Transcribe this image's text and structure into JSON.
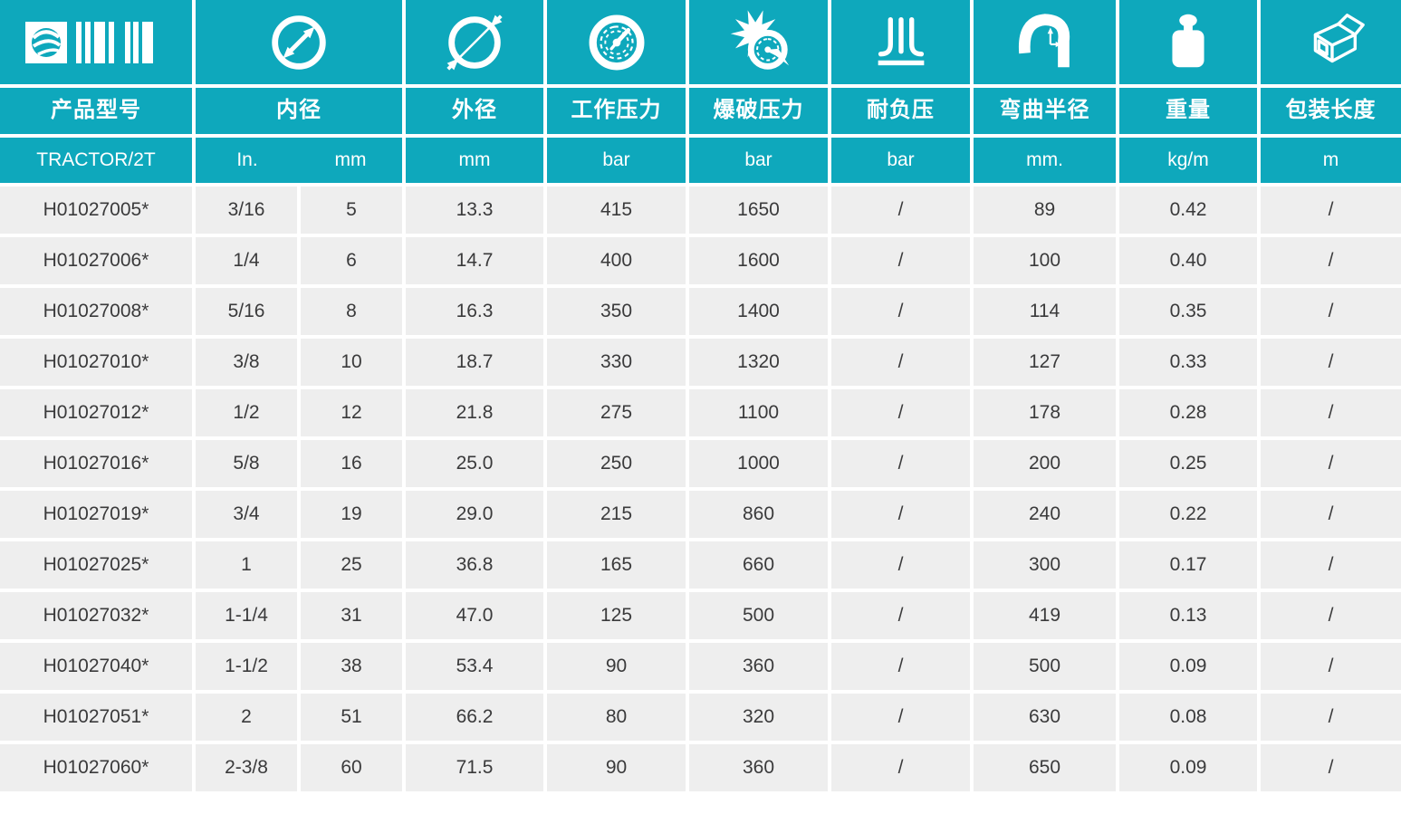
{
  "colors": {
    "accent_teal": "#0EA8BC",
    "row_background": "#EEEEEE",
    "data_text": "#3A3A3B",
    "header_text": "#FFFFFF"
  },
  "table": {
    "series_code": "TRACTOR/2T",
    "columns": [
      {
        "label": "产品型号",
        "unit": "TRACTOR/2T",
        "icon": "globe-barcode-logo-icon"
      },
      {
        "label": "内径",
        "unit_in": "In.",
        "unit_mm": "mm",
        "icon": "inner-diameter-icon"
      },
      {
        "label": "外径",
        "unit": "mm",
        "icon": "outer-diameter-icon"
      },
      {
        "label": "工作压力",
        "unit": "bar",
        "icon": "working-pressure-gauge-icon"
      },
      {
        "label": "爆破压力",
        "unit": "bar",
        "icon": "burst-pressure-icon"
      },
      {
        "label": "耐负压",
        "unit": "bar",
        "icon": "vacuum-resistance-icon"
      },
      {
        "label": "弯曲半径",
        "unit": "mm.",
        "icon": "bend-radius-icon"
      },
      {
        "label": "重量",
        "unit": "kg/m",
        "icon": "weight-icon"
      },
      {
        "label": "包装长度",
        "unit": "m",
        "icon": "packing-length-box-icon"
      }
    ],
    "rows": [
      [
        "H01027005*",
        "3/16",
        "5",
        "13.3",
        "415",
        "1650",
        "/",
        "89",
        "0.42",
        "/"
      ],
      [
        "H01027006*",
        "1/4",
        "6",
        "14.7",
        "400",
        "1600",
        "/",
        "100",
        "0.40",
        "/"
      ],
      [
        "H01027008*",
        "5/16",
        "8",
        "16.3",
        "350",
        "1400",
        "/",
        "114",
        "0.35",
        "/"
      ],
      [
        "H01027010*",
        "3/8",
        "10",
        "18.7",
        "330",
        "1320",
        "/",
        "127",
        "0.33",
        "/"
      ],
      [
        "H01027012*",
        "1/2",
        "12",
        "21.8",
        "275",
        "1100",
        "/",
        "178",
        "0.28",
        "/"
      ],
      [
        "H01027016*",
        "5/8",
        "16",
        "25.0",
        "250",
        "1000",
        "/",
        "200",
        "0.25",
        "/"
      ],
      [
        "H01027019*",
        "3/4",
        "19",
        "29.0",
        "215",
        "860",
        "/",
        "240",
        "0.22",
        "/"
      ],
      [
        "H01027025*",
        "1",
        "25",
        "36.8",
        "165",
        "660",
        "/",
        "300",
        "0.17",
        "/"
      ],
      [
        "H01027032*",
        "1-1/4",
        "31",
        "47.0",
        "125",
        "500",
        "/",
        "419",
        "0.13",
        "/"
      ],
      [
        "H01027040*",
        "1-1/2",
        "38",
        "53.4",
        "90",
        "360",
        "/",
        "500",
        "0.09",
        "/"
      ],
      [
        "H01027051*",
        "2",
        "51",
        "66.2",
        "80",
        "320",
        "/",
        "630",
        "0.08",
        "/"
      ],
      [
        "H01027060*",
        "2-3/8",
        "60",
        "71.5",
        "90",
        "360",
        "/",
        "650",
        "0.09",
        "/"
      ]
    ]
  }
}
